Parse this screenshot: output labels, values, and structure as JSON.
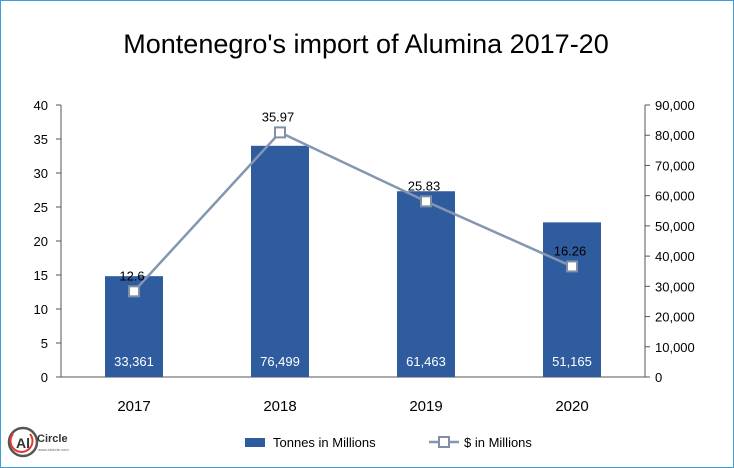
{
  "chart_data": {
    "type": "bar",
    "title": "Montenegro's import of Alumina 2017-20",
    "categories": [
      "2017",
      "2018",
      "2019",
      "2020"
    ],
    "series": [
      {
        "name": "Tonnes in Millions",
        "kind": "bar",
        "axis": "right",
        "values": [
          33361,
          76499,
          61463,
          51165
        ],
        "labels": [
          "33,361",
          "76,499",
          "61,463",
          "51,165"
        ],
        "color": "#2e5c9e"
      },
      {
        "name": "$ in Millions",
        "kind": "line",
        "axis": "left",
        "values": [
          12.6,
          35.97,
          25.83,
          16.26
        ],
        "labels": [
          "12.6",
          "35.97",
          "25.83",
          "16.26"
        ],
        "color": "#8497b0"
      }
    ],
    "y_left": {
      "min": 0,
      "max": 40,
      "ticks": [
        "0",
        "5",
        "10",
        "15",
        "20",
        "25",
        "30",
        "35",
        "40"
      ]
    },
    "y_right": {
      "min": 0,
      "max": 90000,
      "ticks": [
        "0",
        "10,000",
        "20,000",
        "30,000",
        "40,000",
        "50,000",
        "60,000",
        "70,000",
        "80,000",
        "90,000"
      ]
    },
    "grid": false,
    "legend_position": "bottom"
  },
  "logo": {
    "mark": "Al",
    "word": "Circle",
    "tag": "www.alcircle.com"
  }
}
